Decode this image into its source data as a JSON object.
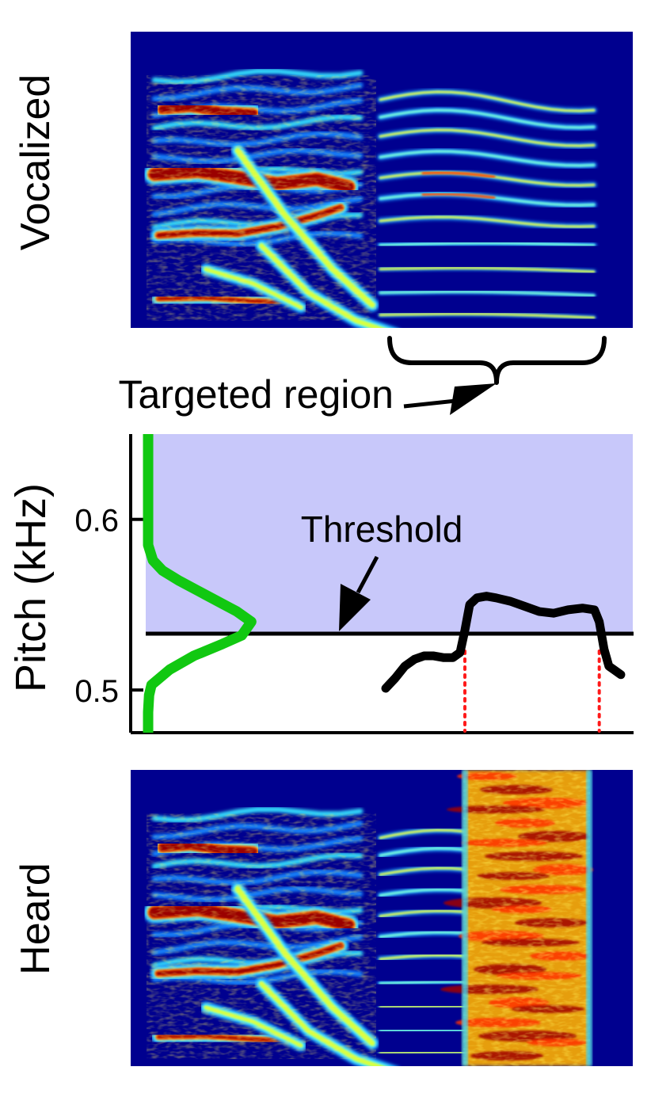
{
  "figure": {
    "top_panel_label": "Vocalized",
    "bottom_panel_label": "Heard",
    "targeted_region_label": "Targeted region",
    "threshold_label": "Threshold"
  },
  "colors": {
    "spectrogram_background": "#00008f",
    "threshold_region_fill": "#c8c8fa",
    "distribution_curve": "#11c811",
    "pitch_trace": "#000000",
    "region_marker_lines": "#ff1a1a"
  },
  "chart_data": [
    {
      "type": "heatmap",
      "name": "vocalized-spectrogram",
      "panel_label": "Vocalized",
      "colormap": "jet",
      "axes_visible": false
    },
    {
      "type": "line",
      "name": "pitch-panel",
      "ylabel": "Pitch (kHz)",
      "xlabel": "",
      "ylim": [
        0.475,
        0.65
      ],
      "yticks": [
        0.5,
        0.6
      ],
      "ytick_labels": [
        "0.5",
        "0.6"
      ],
      "threshold": 0.533,
      "series": [
        {
          "role": "pitch-trace",
          "x": [
            0.5,
            0.52,
            0.54,
            0.56,
            0.58,
            0.6,
            0.62,
            0.64,
            0.655,
            0.665,
            0.675,
            0.69,
            0.71,
            0.73,
            0.76,
            0.79,
            0.82,
            0.85,
            0.88,
            0.91,
            0.935,
            0.945,
            0.955,
            0.965,
            0.975,
            0.99
          ],
          "y": [
            0.501,
            0.507,
            0.514,
            0.518,
            0.52,
            0.52,
            0.519,
            0.519,
            0.522,
            0.535,
            0.55,
            0.554,
            0.555,
            0.554,
            0.552,
            0.549,
            0.546,
            0.545,
            0.547,
            0.548,
            0.547,
            0.54,
            0.524,
            0.514,
            0.512,
            0.509
          ]
        },
        {
          "role": "pitch-distribution",
          "x": [
            0.005,
            0.005,
            0.007,
            0.012,
            0.05,
            0.1,
            0.16,
            0.2,
            0.22,
            0.19,
            0.15,
            0.11,
            0.07,
            0.035,
            0.015,
            0.005,
            0.005
          ],
          "y": [
            0.475,
            0.487,
            0.497,
            0.503,
            0.512,
            0.52,
            0.527,
            0.532,
            0.54,
            0.546,
            0.552,
            0.558,
            0.564,
            0.57,
            0.576,
            0.585,
            0.65
          ]
        }
      ],
      "region_markers_x": [
        0.665,
        0.945
      ]
    },
    {
      "type": "heatmap",
      "name": "heard-spectrogram",
      "panel_label": "Heard",
      "colormap": "jet",
      "axes_visible": false
    }
  ]
}
